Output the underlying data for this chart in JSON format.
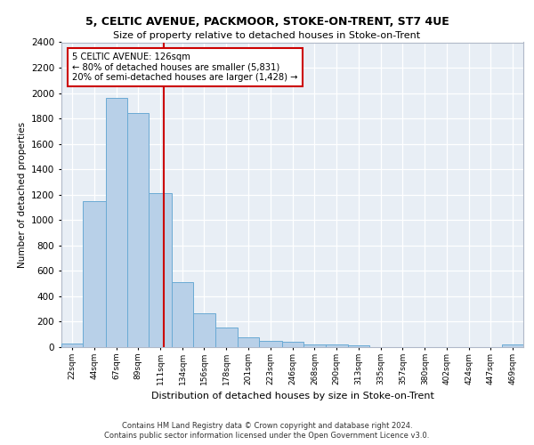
{
  "title1": "5, CELTIC AVENUE, PACKMOOR, STOKE-ON-TRENT, ST7 4UE",
  "title2": "Size of property relative to detached houses in Stoke-on-Trent",
  "xlabel": "Distribution of detached houses by size in Stoke-on-Trent",
  "ylabel": "Number of detached properties",
  "bin_labels": [
    "22sqm",
    "44sqm",
    "67sqm",
    "89sqm",
    "111sqm",
    "134sqm",
    "156sqm",
    "178sqm",
    "201sqm",
    "223sqm",
    "246sqm",
    "268sqm",
    "290sqm",
    "313sqm",
    "335sqm",
    "357sqm",
    "380sqm",
    "402sqm",
    "424sqm",
    "447sqm",
    "469sqm"
  ],
  "bar_values": [
    30,
    1150,
    1960,
    1840,
    1210,
    515,
    265,
    155,
    80,
    48,
    42,
    20,
    20,
    14,
    0,
    0,
    0,
    0,
    0,
    0,
    18
  ],
  "bar_color": "#b8d0e8",
  "bar_edge_color": "#6aaad4",
  "property_sqm": 126,
  "property_line_label": "5 CELTIC AVENUE: 126sqm",
  "annotation_line1": "← 80% of detached houses are smaller (5,831)",
  "annotation_line2": "20% of semi-detached houses are larger (1,428) →",
  "vline_color": "#cc0000",
  "footer1": "Contains HM Land Registry data © Crown copyright and database right 2024.",
  "footer2": "Contains public sector information licensed under the Open Government Licence v3.0.",
  "ylim": [
    0,
    2400
  ],
  "yticks": [
    0,
    200,
    400,
    600,
    800,
    1000,
    1200,
    1400,
    1600,
    1800,
    2000,
    2200,
    2400
  ],
  "bin_edges": [
    22,
    44,
    67,
    89,
    111,
    134,
    156,
    178,
    201,
    223,
    246,
    268,
    290,
    313,
    335,
    357,
    380,
    402,
    424,
    447,
    469,
    491
  ],
  "n_bars": 21
}
